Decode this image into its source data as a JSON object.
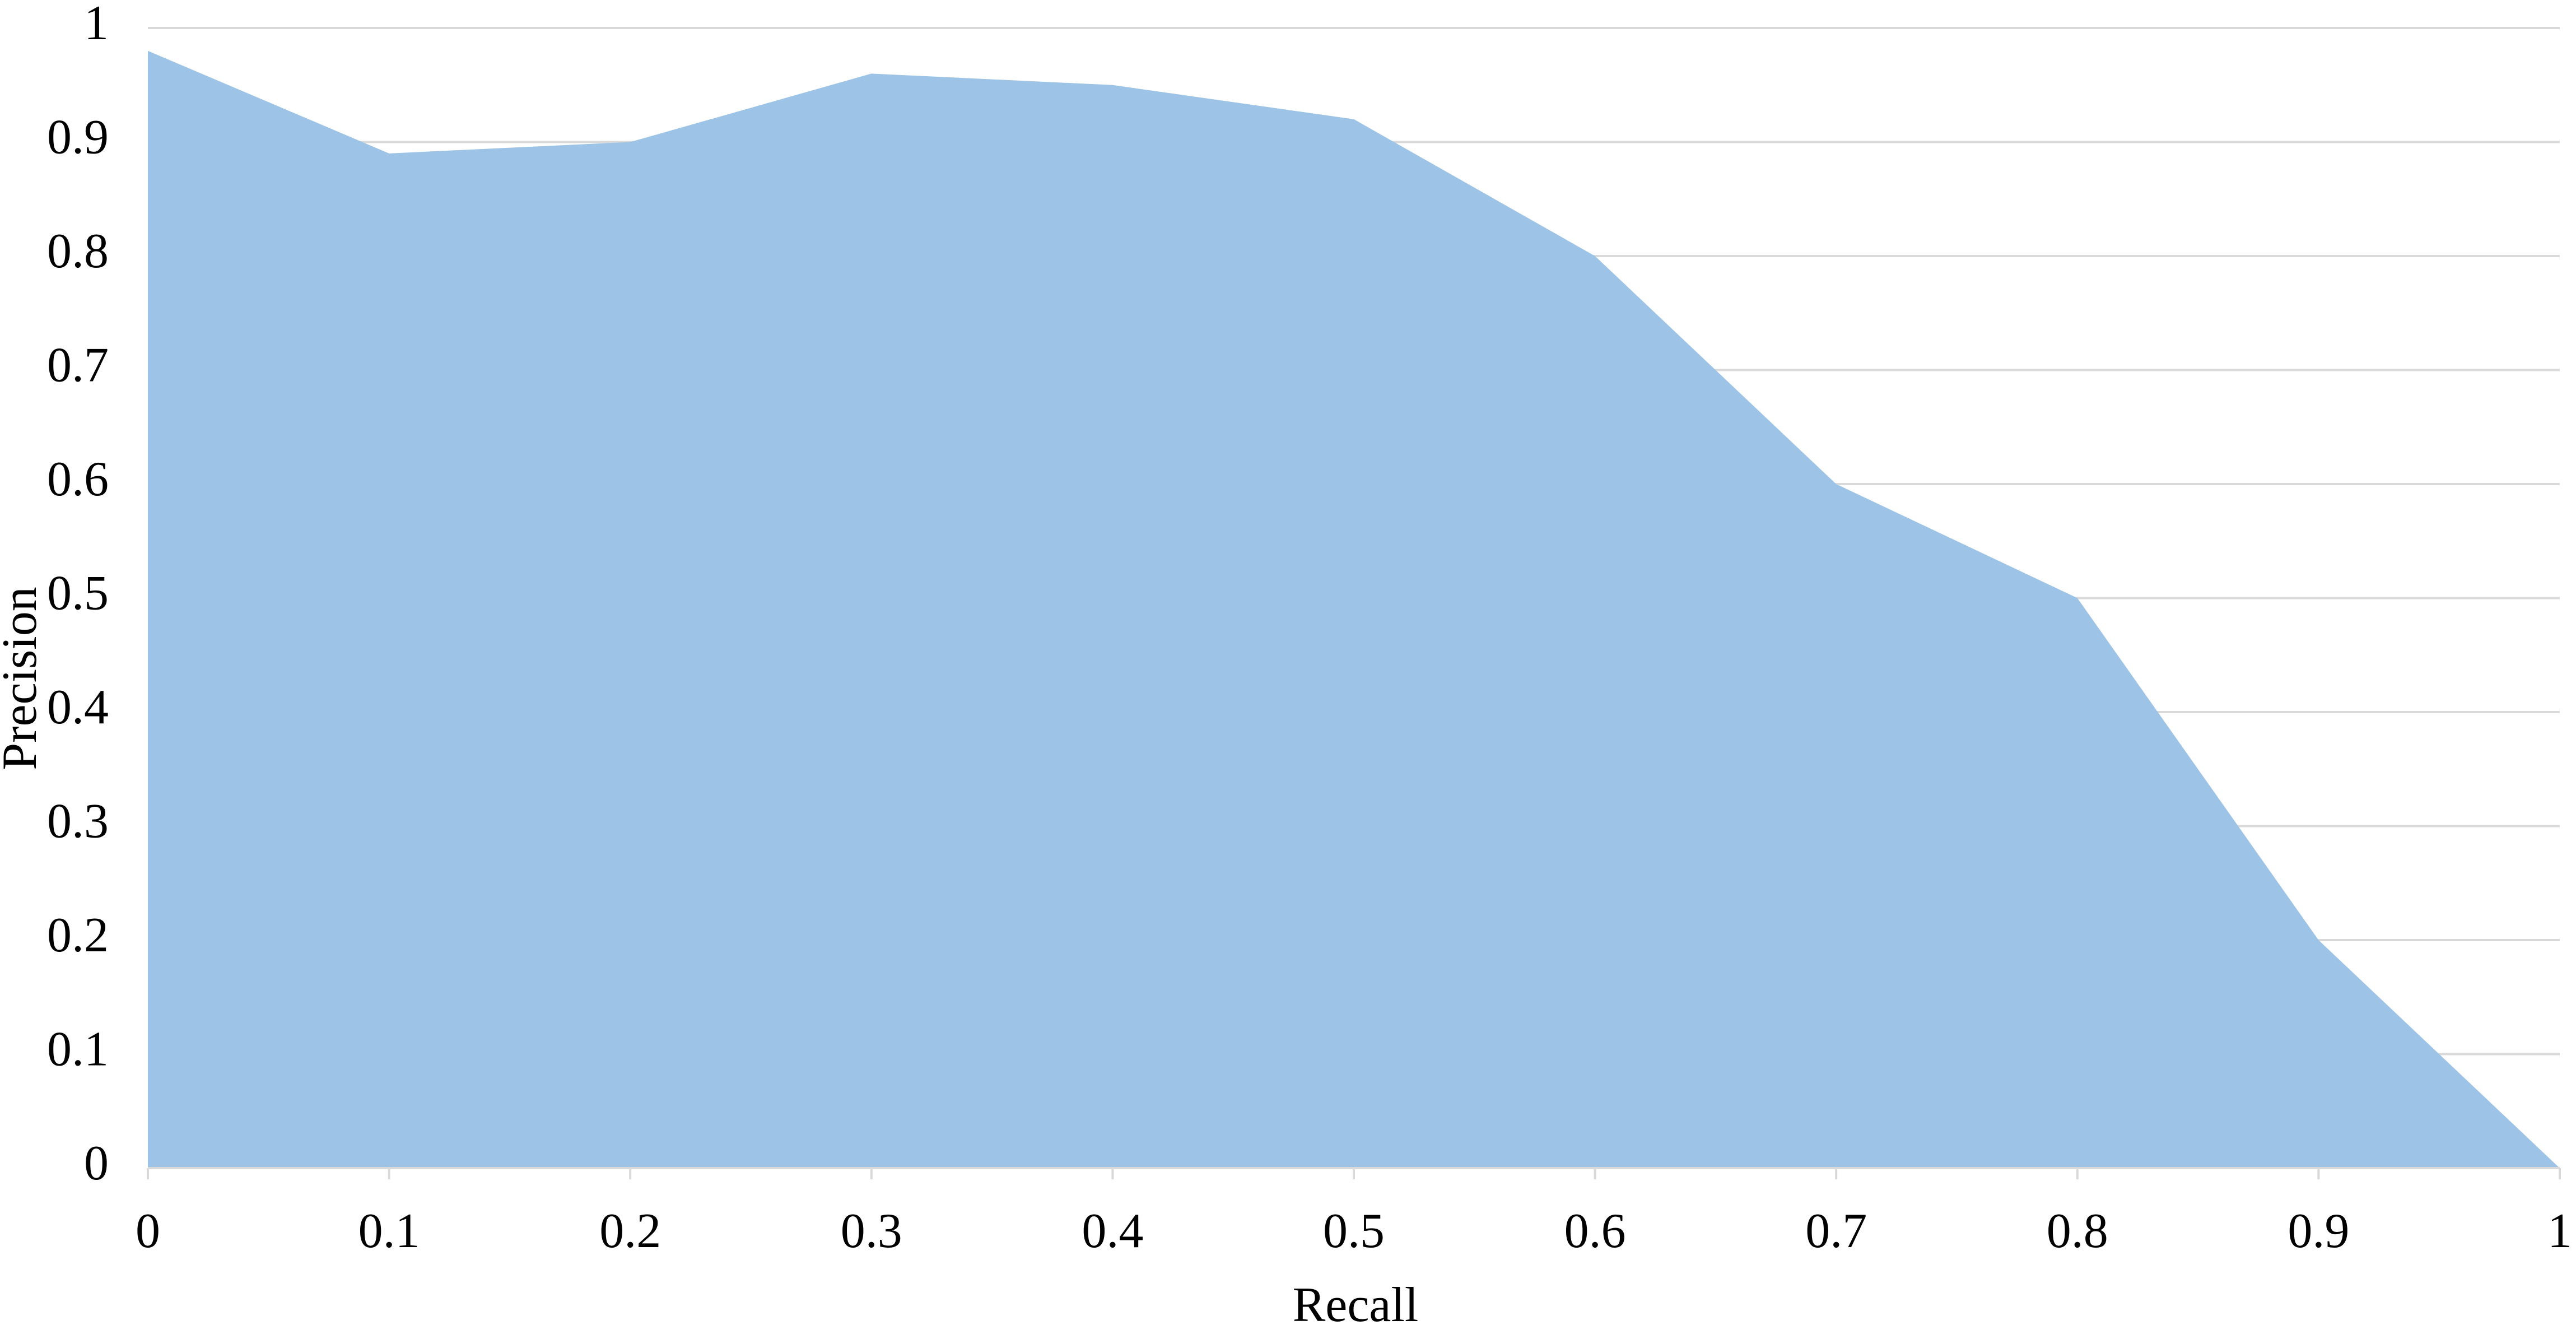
{
  "chart_data": {
    "type": "area",
    "x": [
      0,
      0.1,
      0.2,
      0.3,
      0.4,
      0.5,
      0.6,
      0.7,
      0.8,
      0.9,
      1
    ],
    "values": [
      0.98,
      0.89,
      0.9,
      0.96,
      0.95,
      0.92,
      0.8,
      0.6,
      0.5,
      0.2,
      0
    ],
    "color": "#9dc3e6",
    "x_label": "Recall",
    "y_label": "Precision",
    "xlim": [
      0,
      1
    ],
    "xticks": [
      0,
      0.1,
      0.2,
      0.3,
      0.4,
      0.5,
      0.6,
      0.7,
      0.8,
      0.9,
      1
    ],
    "ylim": [
      0,
      1
    ],
    "yticks": [
      0,
      0.1,
      0.2,
      0.3,
      0.4,
      0.5,
      0.6,
      0.7,
      0.8,
      0.9,
      1
    ],
    "grid": true
  }
}
